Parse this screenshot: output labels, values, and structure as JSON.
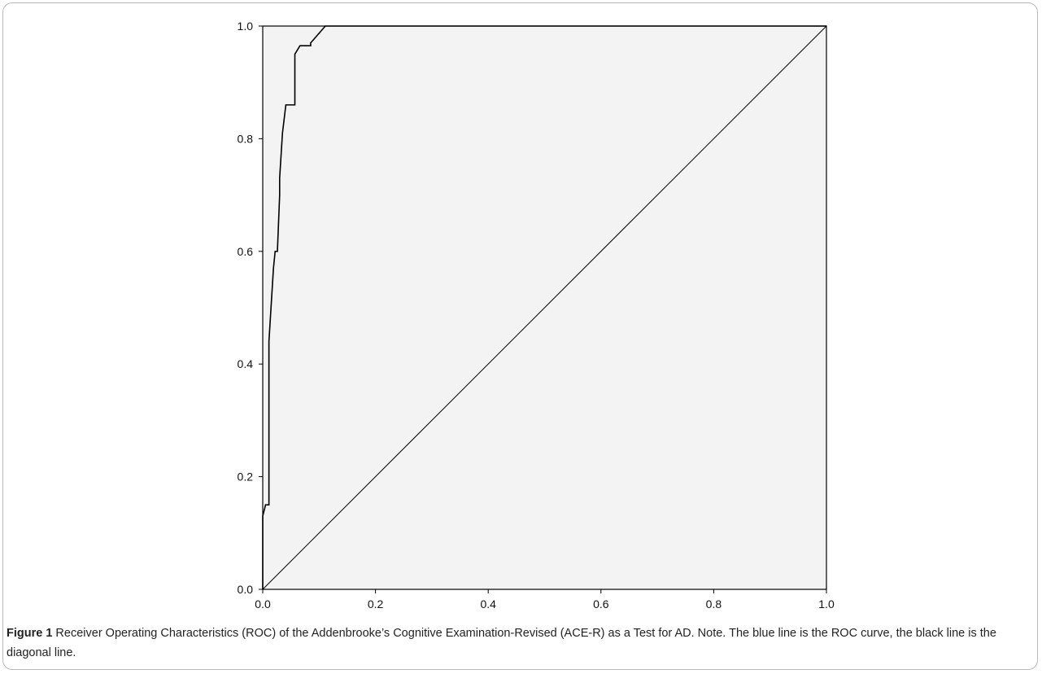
{
  "chart_data": {
    "type": "line",
    "title": "",
    "xlabel": "",
    "ylabel": "",
    "xlim": [
      0.0,
      1.0
    ],
    "ylim": [
      0.0,
      1.0
    ],
    "x_ticks": [
      "0.0",
      "0.2",
      "0.4",
      "0.6",
      "0.8",
      "1.0"
    ],
    "y_ticks": [
      "0.0",
      "0.2",
      "0.4",
      "0.6",
      "0.8",
      "1.0"
    ],
    "grid": false,
    "legend": "none",
    "series": [
      {
        "color": "#000000",
        "x": [
          0.0,
          0.0,
          0.0,
          0.005,
          0.011,
          0.011,
          0.019,
          0.022,
          0.026,
          0.03,
          0.03,
          0.035,
          0.035,
          0.041,
          0.041,
          0.057,
          0.057,
          0.066,
          0.066,
          0.085,
          0.085,
          0.111,
          0.111,
          1.0
        ],
        "y": [
          0.0,
          0.13,
          0.13,
          0.15,
          0.15,
          0.44,
          0.57,
          0.6,
          0.6,
          0.7,
          0.73,
          0.81,
          0.81,
          0.86,
          0.86,
          0.86,
          0.95,
          0.965,
          0.965,
          0.965,
          0.97,
          1.0,
          1.0,
          1.0
        ]
      },
      {
        "color": "#000000",
        "x": [
          0.0,
          1.0
        ],
        "y": [
          0.0,
          1.0
        ]
      }
    ],
    "colors": {
      "plot_background": "#f3f3f3",
      "axis": "#000000",
      "curve": "#000000"
    }
  },
  "caption": {
    "label": "Figure 1",
    "text": " Receiver Operating Characteristics (ROC) of the Addenbrooke’s Cognitive Examination-Revised (ACE-R) as a Test for AD. Note. The blue line is the ROC curve, the black line is the diagonal line."
  }
}
